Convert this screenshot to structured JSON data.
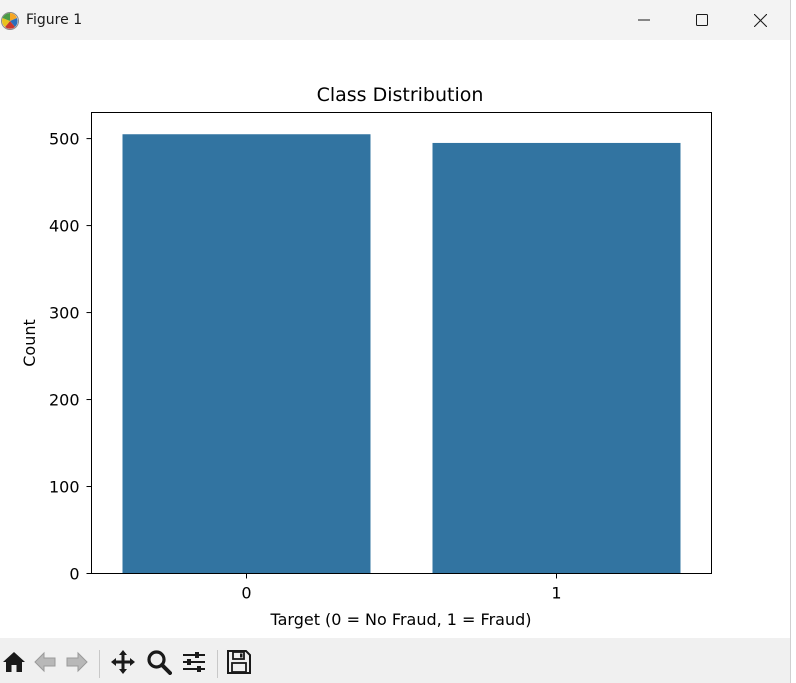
{
  "window": {
    "title": "Figure 1"
  },
  "toolbar": {
    "icons": [
      "home-icon",
      "back-icon",
      "forward-icon",
      "pan-icon",
      "zoom-icon",
      "configure-subplots-icon",
      "save-icon"
    ]
  },
  "chart_data": {
    "type": "bar",
    "title": "Class Distribution",
    "xlabel": "Target (0 = No Fraud, 1 = Fraud)",
    "ylabel": "Count",
    "categories": [
      "0",
      "1"
    ],
    "values": [
      505,
      495
    ],
    "ylim": [
      0,
      530
    ],
    "yticks": [
      0,
      100,
      200,
      300,
      400,
      500
    ],
    "bar_color": "#3274a1",
    "grid": false,
    "legend": "none"
  }
}
